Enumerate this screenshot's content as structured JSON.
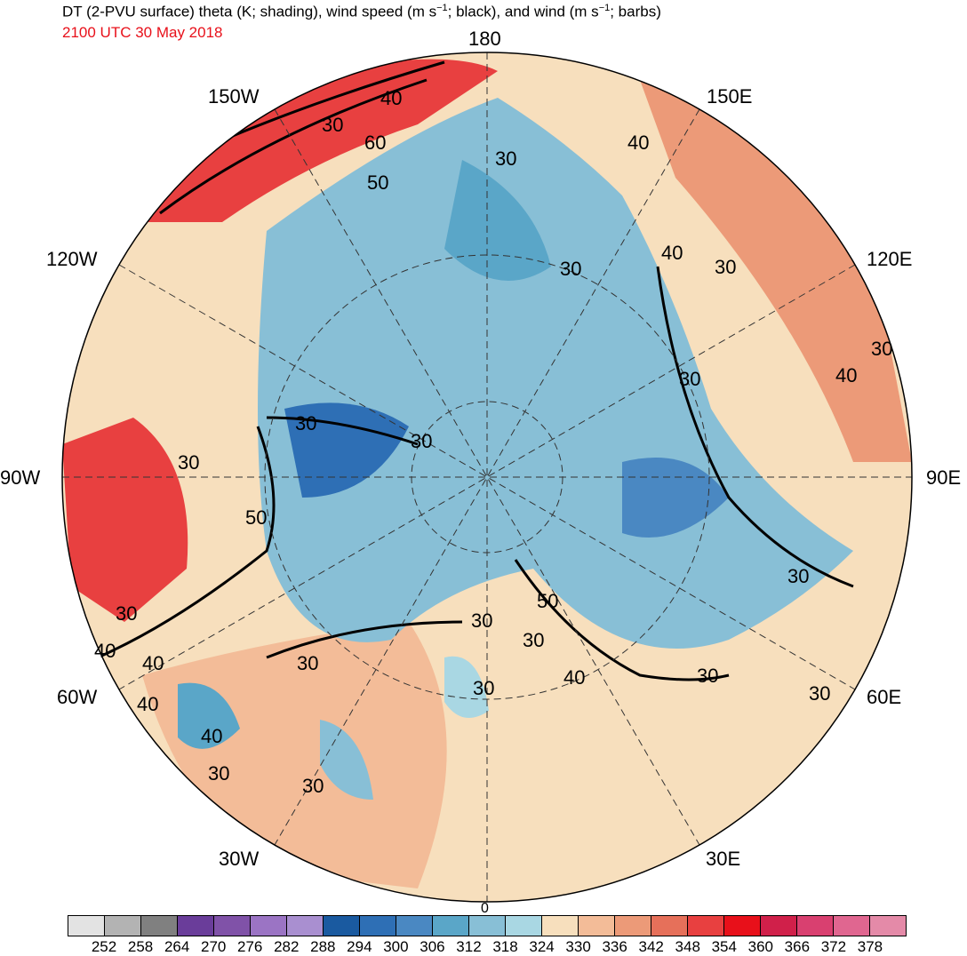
{
  "title": {
    "main": "DT (2-PVU surface) theta (K; shading), wind speed (m s",
    "sup1": "−1",
    "mid": "; black), and wind (m s",
    "sup2": "−1",
    "end": "; barbs)"
  },
  "subtitle": "2100 UTC 30 May 2018",
  "longitude_labels": {
    "n180": "180",
    "w150": "150W",
    "e150": "150E",
    "w120": "120W",
    "e120": "120E",
    "w90": "90W",
    "e90": "90E",
    "w60": "60W",
    "e60": "60E",
    "w30": "30W",
    "e30": "30E",
    "s0": "0"
  },
  "contour_labels": [
    "40",
    "30",
    "60",
    "50",
    "30",
    "40",
    "30",
    "40",
    "30",
    "30",
    "30",
    "30",
    "30",
    "30",
    "30",
    "50",
    "30",
    "30",
    "40",
    "30",
    "50",
    "30",
    "30",
    "40",
    "40",
    "40",
    "40",
    "40",
    "30",
    "30",
    "30",
    "30"
  ],
  "colorbar": {
    "colors": [
      "#e3e3e3",
      "#b3b3b3",
      "#808080",
      "#6a3d9a",
      "#8052a8",
      "#9b74c4",
      "#a98fd0",
      "#1a5aa0",
      "#2e6fb5",
      "#4a88c2",
      "#5aa6c8",
      "#88bfd6",
      "#a9d7e3",
      "#f7dfbd",
      "#f3bc98",
      "#ec9a78",
      "#e6705a",
      "#e84040",
      "#e8101a",
      "#d0204a",
      "#d94070",
      "#e06690",
      "#e48aa8"
    ],
    "labels": [
      "252",
      "258",
      "264",
      "270",
      "276",
      "282",
      "288",
      "294",
      "300",
      "306",
      "312",
      "318",
      "324",
      "330",
      "336",
      "342",
      "348",
      "354",
      "360",
      "366",
      "372",
      "378"
    ]
  },
  "map_colors": {
    "ocean_blue": "#a9d7e3",
    "mid_blue": "#5aa6c8",
    "deep_blue": "#2e6fb5",
    "light_warm": "#f7dfbd",
    "warm": "#ec9a78",
    "hot": "#e84040",
    "contour": "#000000",
    "border": "#3a3a3a"
  }
}
